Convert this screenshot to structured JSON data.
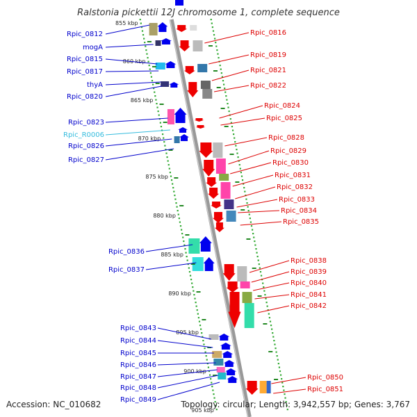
{
  "title": "Ralstonia pickettii 12J chromosome 1, complete sequence",
  "accession": "Accession: NC_010682",
  "topology": "Topology: circular; Length: 3,942,557 bp; Genes: 3,767",
  "kbp_labels": [
    "855 kbp",
    "860 kbp",
    "865 kbp",
    "870 kbp",
    "875 kbp",
    "880 kbp",
    "885 kbp",
    "890 kbp",
    "895 kbp",
    "900 kbp",
    "905 kbp"
  ],
  "genes_left": [
    {
      "label": "Rpic_0812",
      "color": "#0000cc"
    },
    {
      "label": "mogA",
      "color": "#0000cc"
    },
    {
      "label": "Rpic_0815",
      "color": "#0000cc"
    },
    {
      "label": "Rpic_0817",
      "color": "#0000cc"
    },
    {
      "label": "thyA",
      "color": "#0000cc"
    },
    {
      "label": "Rpic_0820",
      "color": "#0000cc"
    },
    {
      "label": "Rpic_0823",
      "color": "#0000cc"
    },
    {
      "label": "Rpic_R0006",
      "color": "#33bbdd"
    },
    {
      "label": "Rpic_0826",
      "color": "#0000cc"
    },
    {
      "label": "Rpic_0827",
      "color": "#0000cc"
    },
    {
      "label": "Rpic_0836",
      "color": "#0000cc"
    },
    {
      "label": "Rpic_0837",
      "color": "#0000cc"
    },
    {
      "label": "Rpic_0843",
      "color": "#0000cc"
    },
    {
      "label": "Rpic_0844",
      "color": "#0000cc"
    },
    {
      "label": "Rpic_0845",
      "color": "#0000cc"
    },
    {
      "label": "Rpic_0846",
      "color": "#0000cc"
    },
    {
      "label": "Rpic_0847",
      "color": "#0000cc"
    },
    {
      "label": "Rpic_0848",
      "color": "#0000cc"
    },
    {
      "label": "Rpic_0849",
      "color": "#0000cc"
    }
  ],
  "genes_right": [
    {
      "label": "Rpic_0816",
      "color": "#dd0000"
    },
    {
      "label": "Rpic_0819",
      "color": "#dd0000"
    },
    {
      "label": "Rpic_0821",
      "color": "#dd0000"
    },
    {
      "label": "Rpic_0822",
      "color": "#dd0000"
    },
    {
      "label": "Rpic_0824",
      "color": "#dd0000"
    },
    {
      "label": "Rpic_0825",
      "color": "#dd0000"
    },
    {
      "label": "Rpic_0828",
      "color": "#dd0000"
    },
    {
      "label": "Rpic_0829",
      "color": "#dd0000"
    },
    {
      "label": "Rpic_0830",
      "color": "#dd0000"
    },
    {
      "label": "Rpic_0831",
      "color": "#dd0000"
    },
    {
      "label": "Rpic_0832",
      "color": "#dd0000"
    },
    {
      "label": "Rpic_0833",
      "color": "#dd0000"
    },
    {
      "label": "Rpic_0834",
      "color": "#dd0000"
    },
    {
      "label": "Rpic_0835",
      "color": "#dd0000"
    },
    {
      "label": "Rpic_0838",
      "color": "#dd0000"
    },
    {
      "label": "Rpic_0839",
      "color": "#dd0000"
    },
    {
      "label": "Rpic_0840",
      "color": "#dd0000"
    },
    {
      "label": "Rpic_0841",
      "color": "#dd0000"
    },
    {
      "label": "Rpic_0842",
      "color": "#dd0000"
    },
    {
      "label": "Rpic_0850",
      "color": "#dd0000"
    },
    {
      "label": "Rpic_0851",
      "color": "#dd0000"
    }
  ],
  "colors": {
    "backbone": "#999999",
    "dots": "#33aa33",
    "forward_strand": "#0000ee",
    "reverse_strand": "#ee0000"
  }
}
